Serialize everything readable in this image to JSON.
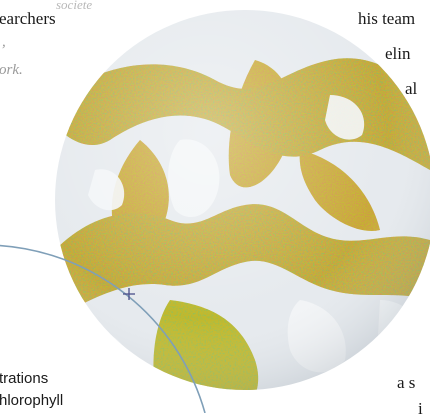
{
  "upper_left_text": {
    "faint_word": "societe",
    "line_1": "earchers",
    "line_2_italic": ",",
    "line_3_italic": "ork."
  },
  "upper_right_text": {
    "line_1": "his team",
    "line_2": "elin",
    "line_3": "al"
  },
  "lower_left_caption": {
    "line_1": "trations",
    "line_2": "hlorophyll"
  },
  "lower_right_text": {
    "line_1": "a s",
    "line_2": "i"
  },
  "colors": {
    "sphere_red": "#b8321e",
    "sphere_green": "#2f8a2a",
    "sphere_yellow": "#c9c22a",
    "sphere_frost": "#e8ecef",
    "guide_ring": "#7f9fb8"
  },
  "icons": [
    "crosshair-icon"
  ]
}
